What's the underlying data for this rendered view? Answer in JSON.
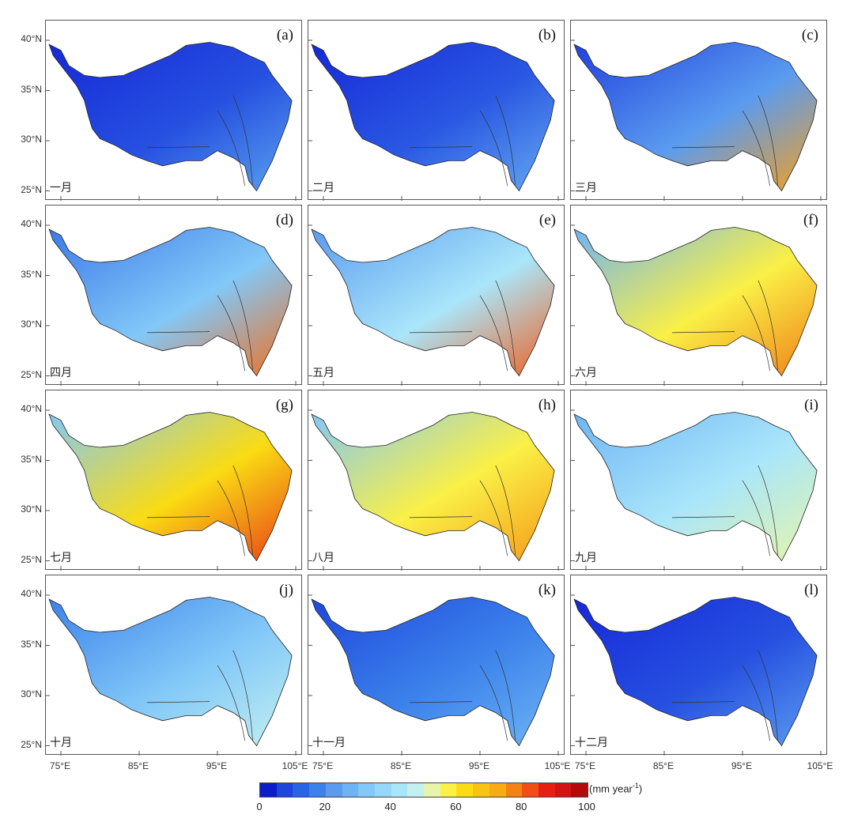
{
  "panels": [
    {
      "letter": "(a)",
      "month": "一月",
      "colors": [
        "#1628d8",
        "#2650e0",
        "#5aa0f0"
      ]
    },
    {
      "letter": "(b)",
      "month": "二月",
      "colors": [
        "#1628d8",
        "#2a58e2",
        "#64a8f2"
      ]
    },
    {
      "letter": "(c)",
      "month": "三月",
      "colors": [
        "#2040dc",
        "#5a9bf0",
        "#f5a020"
      ]
    },
    {
      "letter": "(d)",
      "month": "四月",
      "colors": [
        "#3c78e8",
        "#82c8f8",
        "#f07020"
      ]
    },
    {
      "letter": "(e)",
      "month": "五月",
      "colors": [
        "#5a9bf0",
        "#aae6fa",
        "#f06020"
      ]
    },
    {
      "letter": "(f)",
      "month": "六月",
      "colors": [
        "#6eb4f5",
        "#faf046",
        "#f08018"
      ]
    },
    {
      "letter": "(g)",
      "month": "七月",
      "colors": [
        "#82c8f8",
        "#fadc14",
        "#e84018"
      ]
    },
    {
      "letter": "(h)",
      "month": "八月",
      "colors": [
        "#82c8f8",
        "#faf046",
        "#f59a18"
      ]
    },
    {
      "letter": "(i)",
      "month": "九月",
      "colors": [
        "#6eb4f5",
        "#aae6fa",
        "#e6f5aa"
      ]
    },
    {
      "letter": "(j)",
      "month": "十月",
      "colors": [
        "#3c82eb",
        "#82c8f8",
        "#c3f0f0"
      ]
    },
    {
      "letter": "(k)",
      "month": "十一月",
      "colors": [
        "#1e46dc",
        "#3c82eb",
        "#6eb4f5"
      ]
    },
    {
      "letter": "(l)",
      "month": "十二月",
      "colors": [
        "#1628d8",
        "#2650e0",
        "#5a9bf0"
      ]
    }
  ],
  "axes": {
    "lat_ticks": [
      "40°N",
      "35°N",
      "30°N",
      "25°N"
    ],
    "lon_ticks": [
      "75°E",
      "85°E",
      "95°E",
      "105°E"
    ]
  },
  "colorbar": {
    "ticks": [
      "0",
      "20",
      "40",
      "60",
      "80",
      "100"
    ],
    "unit": "(mm year",
    "unit_sup": "-1",
    "unit_close": ")",
    "range": [
      0,
      100
    ],
    "colors": [
      "#0a1ec8",
      "#1e46dc",
      "#2864e6",
      "#3c82eb",
      "#5a9bf0",
      "#6eb4f5",
      "#82c8f8",
      "#96d7fa",
      "#aae6fa",
      "#c3f0f0",
      "#e6f5aa",
      "#faf046",
      "#fadc14",
      "#fac314",
      "#faaa14",
      "#f58214",
      "#f05014",
      "#e61e14",
      "#d21414",
      "#b40a0a"
    ]
  }
}
